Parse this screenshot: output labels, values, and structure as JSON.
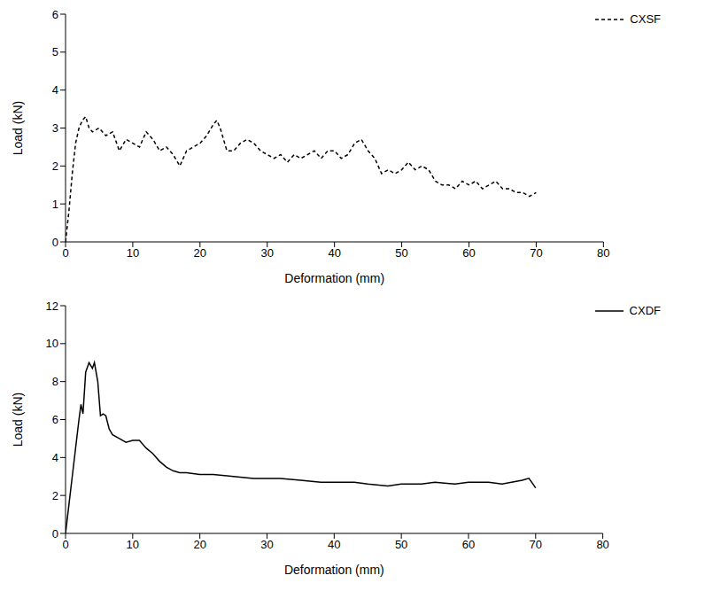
{
  "chart_data": [
    {
      "type": "line",
      "x_label": "Deformation (mm)",
      "y_label": "Load (kN)",
      "xlim": [
        0,
        80
      ],
      "xticks": [
        0,
        10,
        20,
        30,
        40,
        50,
        60,
        70,
        80
      ],
      "ylim": [
        0,
        6
      ],
      "yticks": [
        0,
        1,
        2,
        3,
        4,
        5,
        6
      ],
      "legend": "top-right",
      "x": [
        0,
        0.5,
        1,
        1.5,
        2,
        2.5,
        3,
        3.5,
        4,
        5,
        6,
        7,
        8,
        9,
        10,
        11,
        12,
        13,
        14,
        15,
        16,
        17,
        18,
        19,
        20,
        21,
        22,
        22.5,
        23,
        24,
        25,
        26,
        27,
        28,
        29,
        30,
        31,
        32,
        33,
        34,
        35,
        36,
        37,
        38,
        39,
        40,
        41,
        42,
        43,
        44,
        45,
        46,
        47,
        48,
        49,
        50,
        51,
        52,
        53,
        54,
        55,
        56,
        57,
        58,
        59,
        60,
        61,
        62,
        63,
        64,
        65,
        66,
        67,
        68,
        69,
        70
      ],
      "series": [
        {
          "name": "CXSF",
          "color": "#000000",
          "line_style": "dashed",
          "values": [
            0,
            0.8,
            1.8,
            2.6,
            3.0,
            3.2,
            3.3,
            3.0,
            2.9,
            3.0,
            2.8,
            2.9,
            2.4,
            2.7,
            2.6,
            2.5,
            2.9,
            2.7,
            2.4,
            2.5,
            2.3,
            2.0,
            2.4,
            2.5,
            2.6,
            2.8,
            3.1,
            3.2,
            3.0,
            2.4,
            2.4,
            2.6,
            2.7,
            2.6,
            2.4,
            2.3,
            2.2,
            2.3,
            2.1,
            2.3,
            2.2,
            2.3,
            2.4,
            2.2,
            2.4,
            2.4,
            2.2,
            2.3,
            2.6,
            2.7,
            2.4,
            2.2,
            1.8,
            1.9,
            1.8,
            1.9,
            2.1,
            1.9,
            2.0,
            1.9,
            1.6,
            1.5,
            1.5,
            1.4,
            1.6,
            1.5,
            1.6,
            1.4,
            1.5,
            1.6,
            1.4,
            1.4,
            1.3,
            1.3,
            1.2,
            1.3
          ]
        }
      ]
    },
    {
      "type": "line",
      "x_label": "Deformation (mm)",
      "y_label": "Load (kN)",
      "xlim": [
        0,
        80
      ],
      "xticks": [
        0,
        10,
        20,
        30,
        40,
        50,
        60,
        70,
        80
      ],
      "ylim": [
        0,
        12
      ],
      "yticks": [
        0,
        2,
        4,
        6,
        8,
        10,
        12
      ],
      "legend": "top-right",
      "x": [
        0,
        0.5,
        1,
        1.5,
        2,
        2.3,
        2.6,
        3,
        3.5,
        4,
        4.3,
        4.8,
        5.2,
        5.6,
        6,
        6.5,
        7,
        8,
        9,
        10,
        11,
        12,
        13,
        14,
        15,
        16,
        17,
        18,
        20,
        22,
        25,
        28,
        30,
        32,
        35,
        38,
        40,
        43,
        45,
        48,
        50,
        53,
        55,
        58,
        60,
        63,
        65,
        68,
        69,
        70
      ],
      "series": [
        {
          "name": "CXDF",
          "color": "#000000",
          "line_style": "solid",
          "values": [
            0,
            1.5,
            3,
            4.5,
            6,
            6.8,
            6.3,
            8.5,
            9.0,
            8.7,
            9.0,
            8.0,
            6.2,
            6.3,
            6.2,
            5.5,
            5.2,
            5.0,
            4.8,
            4.9,
            4.9,
            4.5,
            4.2,
            3.8,
            3.5,
            3.3,
            3.2,
            3.2,
            3.1,
            3.1,
            3.0,
            2.9,
            2.9,
            2.9,
            2.8,
            2.7,
            2.7,
            2.7,
            2.6,
            2.5,
            2.6,
            2.6,
            2.7,
            2.6,
            2.7,
            2.7,
            2.6,
            2.8,
            2.9,
            2.4
          ]
        }
      ]
    }
  ]
}
